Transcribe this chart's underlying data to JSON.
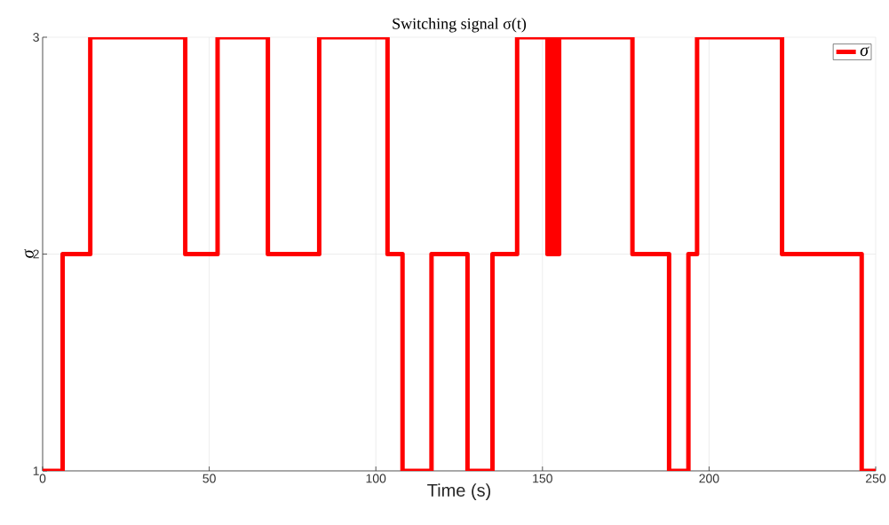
{
  "chart_data": {
    "type": "step",
    "title": "Switching signal σ(t)",
    "xlabel": "Time (s)",
    "ylabel": "σ",
    "x": [
      0,
      6,
      14.3,
      42.8,
      52.5,
      67.6,
      83,
      103.5,
      108,
      116.7,
      127.5,
      135,
      142.4,
      151.5,
      152.5,
      153,
      153.5,
      154,
      155,
      177,
      188,
      193.8,
      196.4,
      221.9,
      245.8,
      250
    ],
    "series": [
      {
        "name": "σ",
        "color": "#ff0000",
        "values": [
          1,
          2,
          3,
          2,
          3,
          2,
          3,
          2,
          1,
          2,
          1,
          2,
          3,
          2,
          3,
          2,
          3,
          2,
          3,
          2,
          1,
          2,
          3,
          2,
          1,
          1
        ]
      }
    ],
    "xlim": [
      0,
      250
    ],
    "ylim": [
      1,
      3
    ],
    "xticks": [
      0,
      50,
      100,
      150,
      200,
      250
    ],
    "yticks": [
      1,
      2,
      3
    ],
    "grid": true,
    "legend": "top right"
  }
}
